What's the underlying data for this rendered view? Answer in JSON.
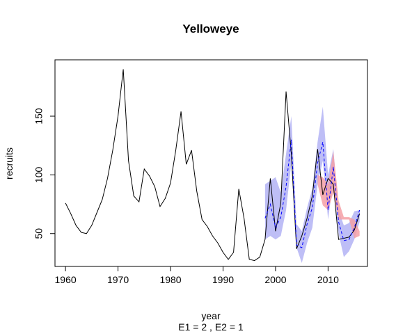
{
  "chart_data": {
    "type": "line",
    "title": "Yelloweye",
    "xlabel": "year",
    "subtitle": "E1 = 2 , E2 = 1",
    "ylabel": "recruits",
    "xlim": [
      1958,
      2017.5
    ],
    "ylim": [
      22,
      198
    ],
    "x_ticks": [
      1960,
      1970,
      1980,
      1990,
      2000,
      2010
    ],
    "y_ticks": [
      50,
      100,
      150
    ],
    "colors": {
      "observed": "#000000",
      "forecast": "#0000ff",
      "band_blue": "#b3b3f5",
      "band_red": "#f5a0a6"
    },
    "series": [
      {
        "x": [
          1960,
          1961,
          1962,
          1963,
          1964,
          1965,
          1966,
          1967,
          1968,
          1969,
          1970,
          1971,
          1972,
          1973,
          1974,
          1975,
          1976,
          1977,
          1978,
          1979,
          1980,
          1981,
          1982,
          1983,
          1984,
          1985,
          1986,
          1987,
          1988,
          1989,
          1990,
          1991,
          1992,
          1993,
          1994,
          1995,
          1996,
          1997,
          1998,
          1999,
          2000,
          2001,
          2002,
          2003,
          2004,
          2005,
          2006,
          2007,
          2008,
          2009,
          2010,
          2011,
          2012,
          2013,
          2014,
          2015,
          2016
        ],
        "values": [
          76,
          67,
          57,
          51,
          50,
          57,
          68,
          79,
          97,
          121,
          150,
          190,
          112,
          82,
          77,
          105,
          99,
          90,
          73,
          80,
          93,
          121,
          154,
          109,
          121,
          86,
          62,
          56,
          48,
          42,
          34,
          28,
          34,
          88,
          63,
          28,
          27,
          30,
          45,
          97,
          52,
          76,
          171,
          118,
          37,
          48,
          63,
          82,
          122,
          83,
          97,
          92,
          45,
          46,
          47,
          53,
          67
        ]
      },
      {
        "x": [
          1998,
          1999,
          2000,
          2001,
          2002,
          2003,
          2004,
          2005,
          2006,
          2007,
          2008,
          2009,
          2010,
          2011,
          2012,
          2013,
          2014,
          2015,
          2016
        ],
        "values": [
          63,
          75,
          55,
          64,
          90,
          130,
          40,
          38,
          58,
          72,
          110,
          128,
          70,
          107,
          60,
          44,
          45,
          55,
          70
        ]
      }
    ],
    "intervals": [
      {
        "x": [
          1998,
          1999,
          2000,
          2001,
          2002,
          2003,
          2004,
          2005,
          2006,
          2007,
          2008,
          2009,
          2010,
          2011,
          2012,
          2013,
          2014,
          2015,
          2016
        ],
        "lower": [
          45,
          48,
          45,
          48,
          70,
          110,
          38,
          25,
          42,
          55,
          92,
          112,
          62,
          95,
          50,
          30,
          35,
          45,
          60
        ],
        "upper": [
          92,
          95,
          98,
          85,
          118,
          150,
          58,
          52,
          72,
          88,
          128,
          158,
          100,
          122,
          70,
          57,
          59,
          69,
          70
        ]
      },
      {
        "x": [
          2008,
          2009,
          2010,
          2011,
          2012,
          2013,
          2014,
          2015,
          2016
        ],
        "lower": [
          92,
          74,
          70,
          85,
          62,
          62,
          62,
          46,
          48
        ],
        "upper": [
          100,
          98,
          92,
          120,
          78,
          64,
          64,
          62,
          52
        ]
      }
    ],
    "grid": false,
    "legend": "none"
  }
}
